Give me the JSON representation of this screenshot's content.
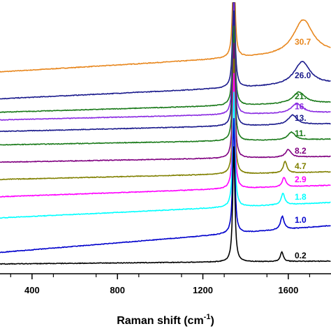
{
  "chart_data": {
    "type": "line",
    "xlabel": "Raman shift (cm",
    "xlabel_superscript": "-1",
    "xlabel_suffix": ")",
    "ylabel": "",
    "xlim": [
      250,
      1800
    ],
    "x_ticks": [
      400,
      800,
      1200,
      1600
    ],
    "grid": false,
    "legend": "labels at right end of each curve",
    "series": [
      {
        "label": "30.7",
        "color": "#e8871e",
        "offset": 100,
        "ramp": 10,
        "dband": 60,
        "gband": 18,
        "gpos": 1670,
        "gwidth": 55
      },
      {
        "label": "26.0",
        "color": "#1a1a8c",
        "offset": 86,
        "ramp": 8,
        "dband": 60,
        "gband": 12,
        "gpos": 1665,
        "gwidth": 45
      },
      {
        "label": "21.",
        "color": "#1a7a1a",
        "offset": 79,
        "ramp": 5,
        "dband": 60,
        "gband": 6,
        "gpos": 1650,
        "gwidth": 35
      },
      {
        "label": "16.",
        "color": "#8a2be2",
        "offset": 75,
        "ramp": 4,
        "dband": 60,
        "gband": 5,
        "gpos": 1640,
        "gwidth": 30
      },
      {
        "label": "13.",
        "color": "#1a1a8c",
        "offset": 69,
        "ramp": 4,
        "dband": 60,
        "gband": 5,
        "gpos": 1620,
        "gwidth": 25
      },
      {
        "label": "11.",
        "color": "#1a7a1a",
        "offset": 62,
        "ramp": 3,
        "dband": 60,
        "gband": 4,
        "gpos": 1615,
        "gwidth": 20
      },
      {
        "label": "8.2",
        "color": "#800080",
        "offset": 53,
        "ramp": 3,
        "dband": 60,
        "gband": 4,
        "gpos": 1600,
        "gwidth": 15
      },
      {
        "label": "4.7",
        "color": "#808000",
        "offset": 44,
        "ramp": 4,
        "dband": 60,
        "gband": 6,
        "gpos": 1585,
        "gwidth": 10
      },
      {
        "label": "2.9",
        "color": "#ff00ff",
        "offset": 35,
        "ramp": 6,
        "dband": 60,
        "gband": 5,
        "gpos": 1580,
        "gwidth": 10
      },
      {
        "label": "1.8",
        "color": "#00ffff",
        "offset": 24,
        "ramp": 8,
        "dband": 60,
        "gband": 6,
        "gpos": 1575,
        "gwidth": 10
      },
      {
        "label": "1.0",
        "color": "#0000cc",
        "offset": 6,
        "ramp": 14,
        "dband": 60,
        "gband": 7,
        "gpos": 1572,
        "gwidth": 10
      },
      {
        "label": "0.2",
        "color": "#000000",
        "offset": 0,
        "ramp": 1.5,
        "dband": 60,
        "gband": 5,
        "gpos": 1570,
        "gwidth": 8
      }
    ]
  }
}
